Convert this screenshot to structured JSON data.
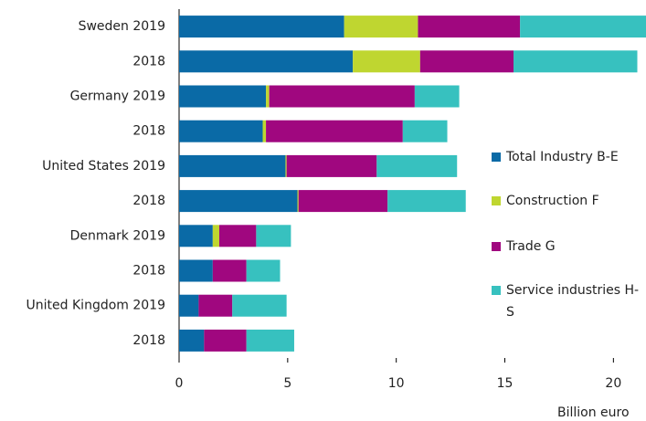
{
  "chart_data": {
    "type": "stacked_bar_horizontal",
    "categories": [
      "Sweden 2019",
      "2018",
      "Germany 2019",
      "2018",
      "United States 2019",
      "2018",
      "Denmark 2019",
      "2018",
      "United Kingdom 2019",
      "2018"
    ],
    "series": [
      {
        "name": "Total Industry B-E",
        "color": "#0a6aa6",
        "values": [
          7.6,
          8.0,
          4.0,
          3.85,
          4.9,
          5.45,
          1.55,
          1.55,
          0.9,
          1.15
        ]
      },
      {
        "name": "Construction F",
        "color": "#bfd630",
        "values": [
          3.4,
          3.1,
          0.15,
          0.15,
          0.05,
          0.05,
          0.3,
          0,
          0,
          0
        ]
      },
      {
        "name": "Trade G",
        "color": "#a0077f",
        "values": [
          4.7,
          4.3,
          6.7,
          6.3,
          4.15,
          4.1,
          1.7,
          1.55,
          1.55,
          1.95
        ]
      },
      {
        "name": "Service industries H-S",
        "color": "#37c1bf",
        "values": [
          5.8,
          5.7,
          2.05,
          2.05,
          3.7,
          3.6,
          1.6,
          1.55,
          2.5,
          2.2
        ]
      }
    ],
    "xlim": [
      0,
      21.5
    ],
    "xticks": [
      0,
      5,
      10,
      15,
      20
    ],
    "x_label": "Billion euro",
    "legend": "right"
  }
}
